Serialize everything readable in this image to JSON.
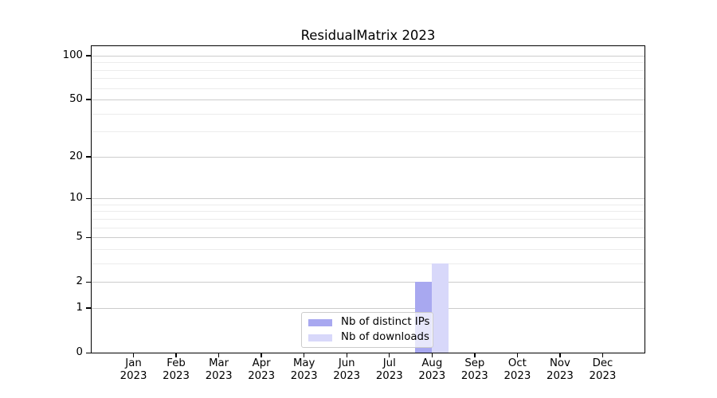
{
  "chart_data": {
    "type": "bar",
    "title": "ResidualMatrix 2023",
    "categories": [
      "Jan",
      "Feb",
      "Mar",
      "Apr",
      "May",
      "Jun",
      "Jul",
      "Aug",
      "Sep",
      "Oct",
      "Nov",
      "Dec"
    ],
    "year_label": "2023",
    "series": [
      {
        "name": "Nb of distinct IPs",
        "color": "#a8a8f0",
        "values": [
          0,
          0,
          0,
          0,
          0,
          0,
          0,
          2,
          0,
          0,
          0,
          0
        ]
      },
      {
        "name": "Nb of downloads",
        "color": "#d8d8fa",
        "values": [
          0,
          0,
          0,
          0,
          0,
          0,
          0,
          3,
          0,
          0,
          0,
          0
        ]
      }
    ],
    "y_scale": "log1p",
    "y_major_ticks": [
      0,
      1,
      2,
      5,
      10,
      20,
      50,
      100
    ],
    "y_minor_gridlines": [
      3,
      4,
      6,
      7,
      8,
      9,
      30,
      40,
      60,
      70,
      80,
      90
    ],
    "ylim": [
      0,
      117
    ],
    "grid": "horizontal",
    "legend_position": "bottom-center"
  },
  "colors": {
    "axis": "#000000",
    "major_grid": "#cccccc",
    "minor_grid": "#ececec",
    "background": "#ffffff"
  }
}
